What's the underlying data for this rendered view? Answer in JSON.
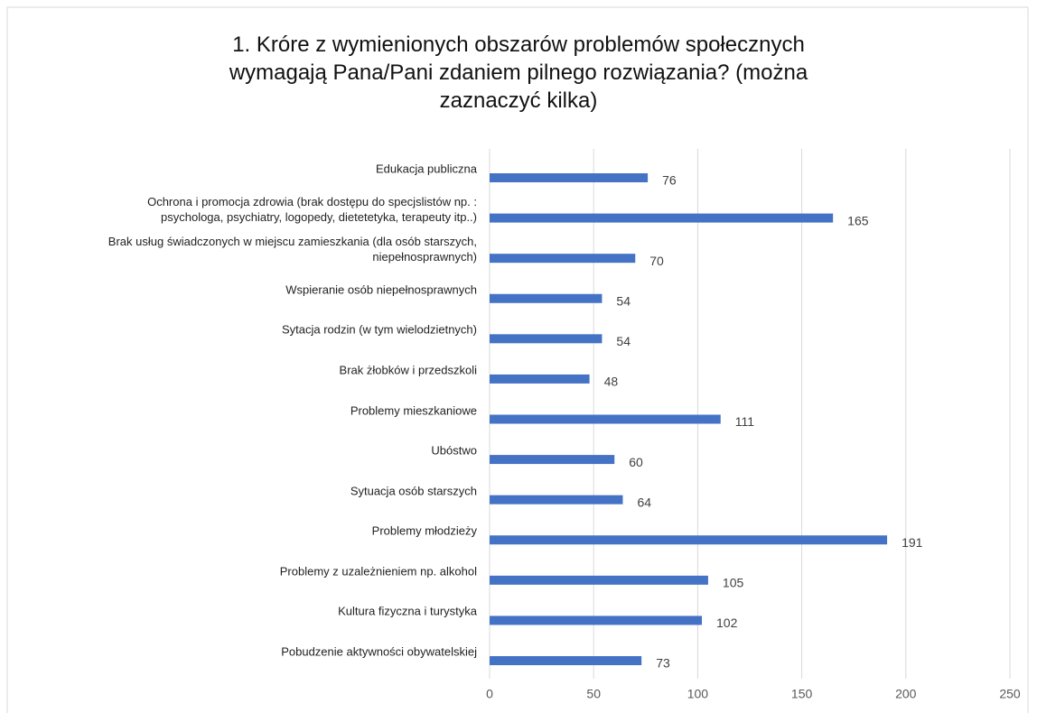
{
  "chart_data": {
    "type": "bar",
    "orientation": "horizontal",
    "title": "1. Króre z wymienionych obszarów problemów społecznych\nwymagają Pana/Pani zdaniem pilnego rozwiązania? (można\nzaznaczyć kilka)",
    "categories": [
      "Edukacja publiczna",
      "Ochrona i promocja zdrowia (brak dostępu do specjslistów np. :\npsychologa, psychiatry, logopedy, dietetetyka, terapeuty itp..)",
      "Brak usług świadczonych w miejscu zamieszkania (dla osób starszych,\nniepełnosprawnych)",
      "Wspieranie osób niepełnosprawnych",
      "Sytacja rodzin (w tym wielodzietnych)",
      "Brak żłobków i przedszkoli",
      "Problemy mieszkaniowe",
      "Ubóstwo",
      "Sytuacja osób starszych",
      "Problemy młodzieży",
      "Problemy z uzależnieniem np. alkohol",
      "Kultura fizyczna i turystyka",
      "Pobudzenie aktywności obywatelskiej"
    ],
    "values": [
      76,
      165,
      70,
      54,
      54,
      48,
      111,
      60,
      64,
      191,
      105,
      102,
      73
    ],
    "color": "#4472c4",
    "xlim": [
      0,
      250
    ],
    "xticks": [
      0,
      50,
      100,
      150,
      200,
      250
    ],
    "grid": true
  }
}
